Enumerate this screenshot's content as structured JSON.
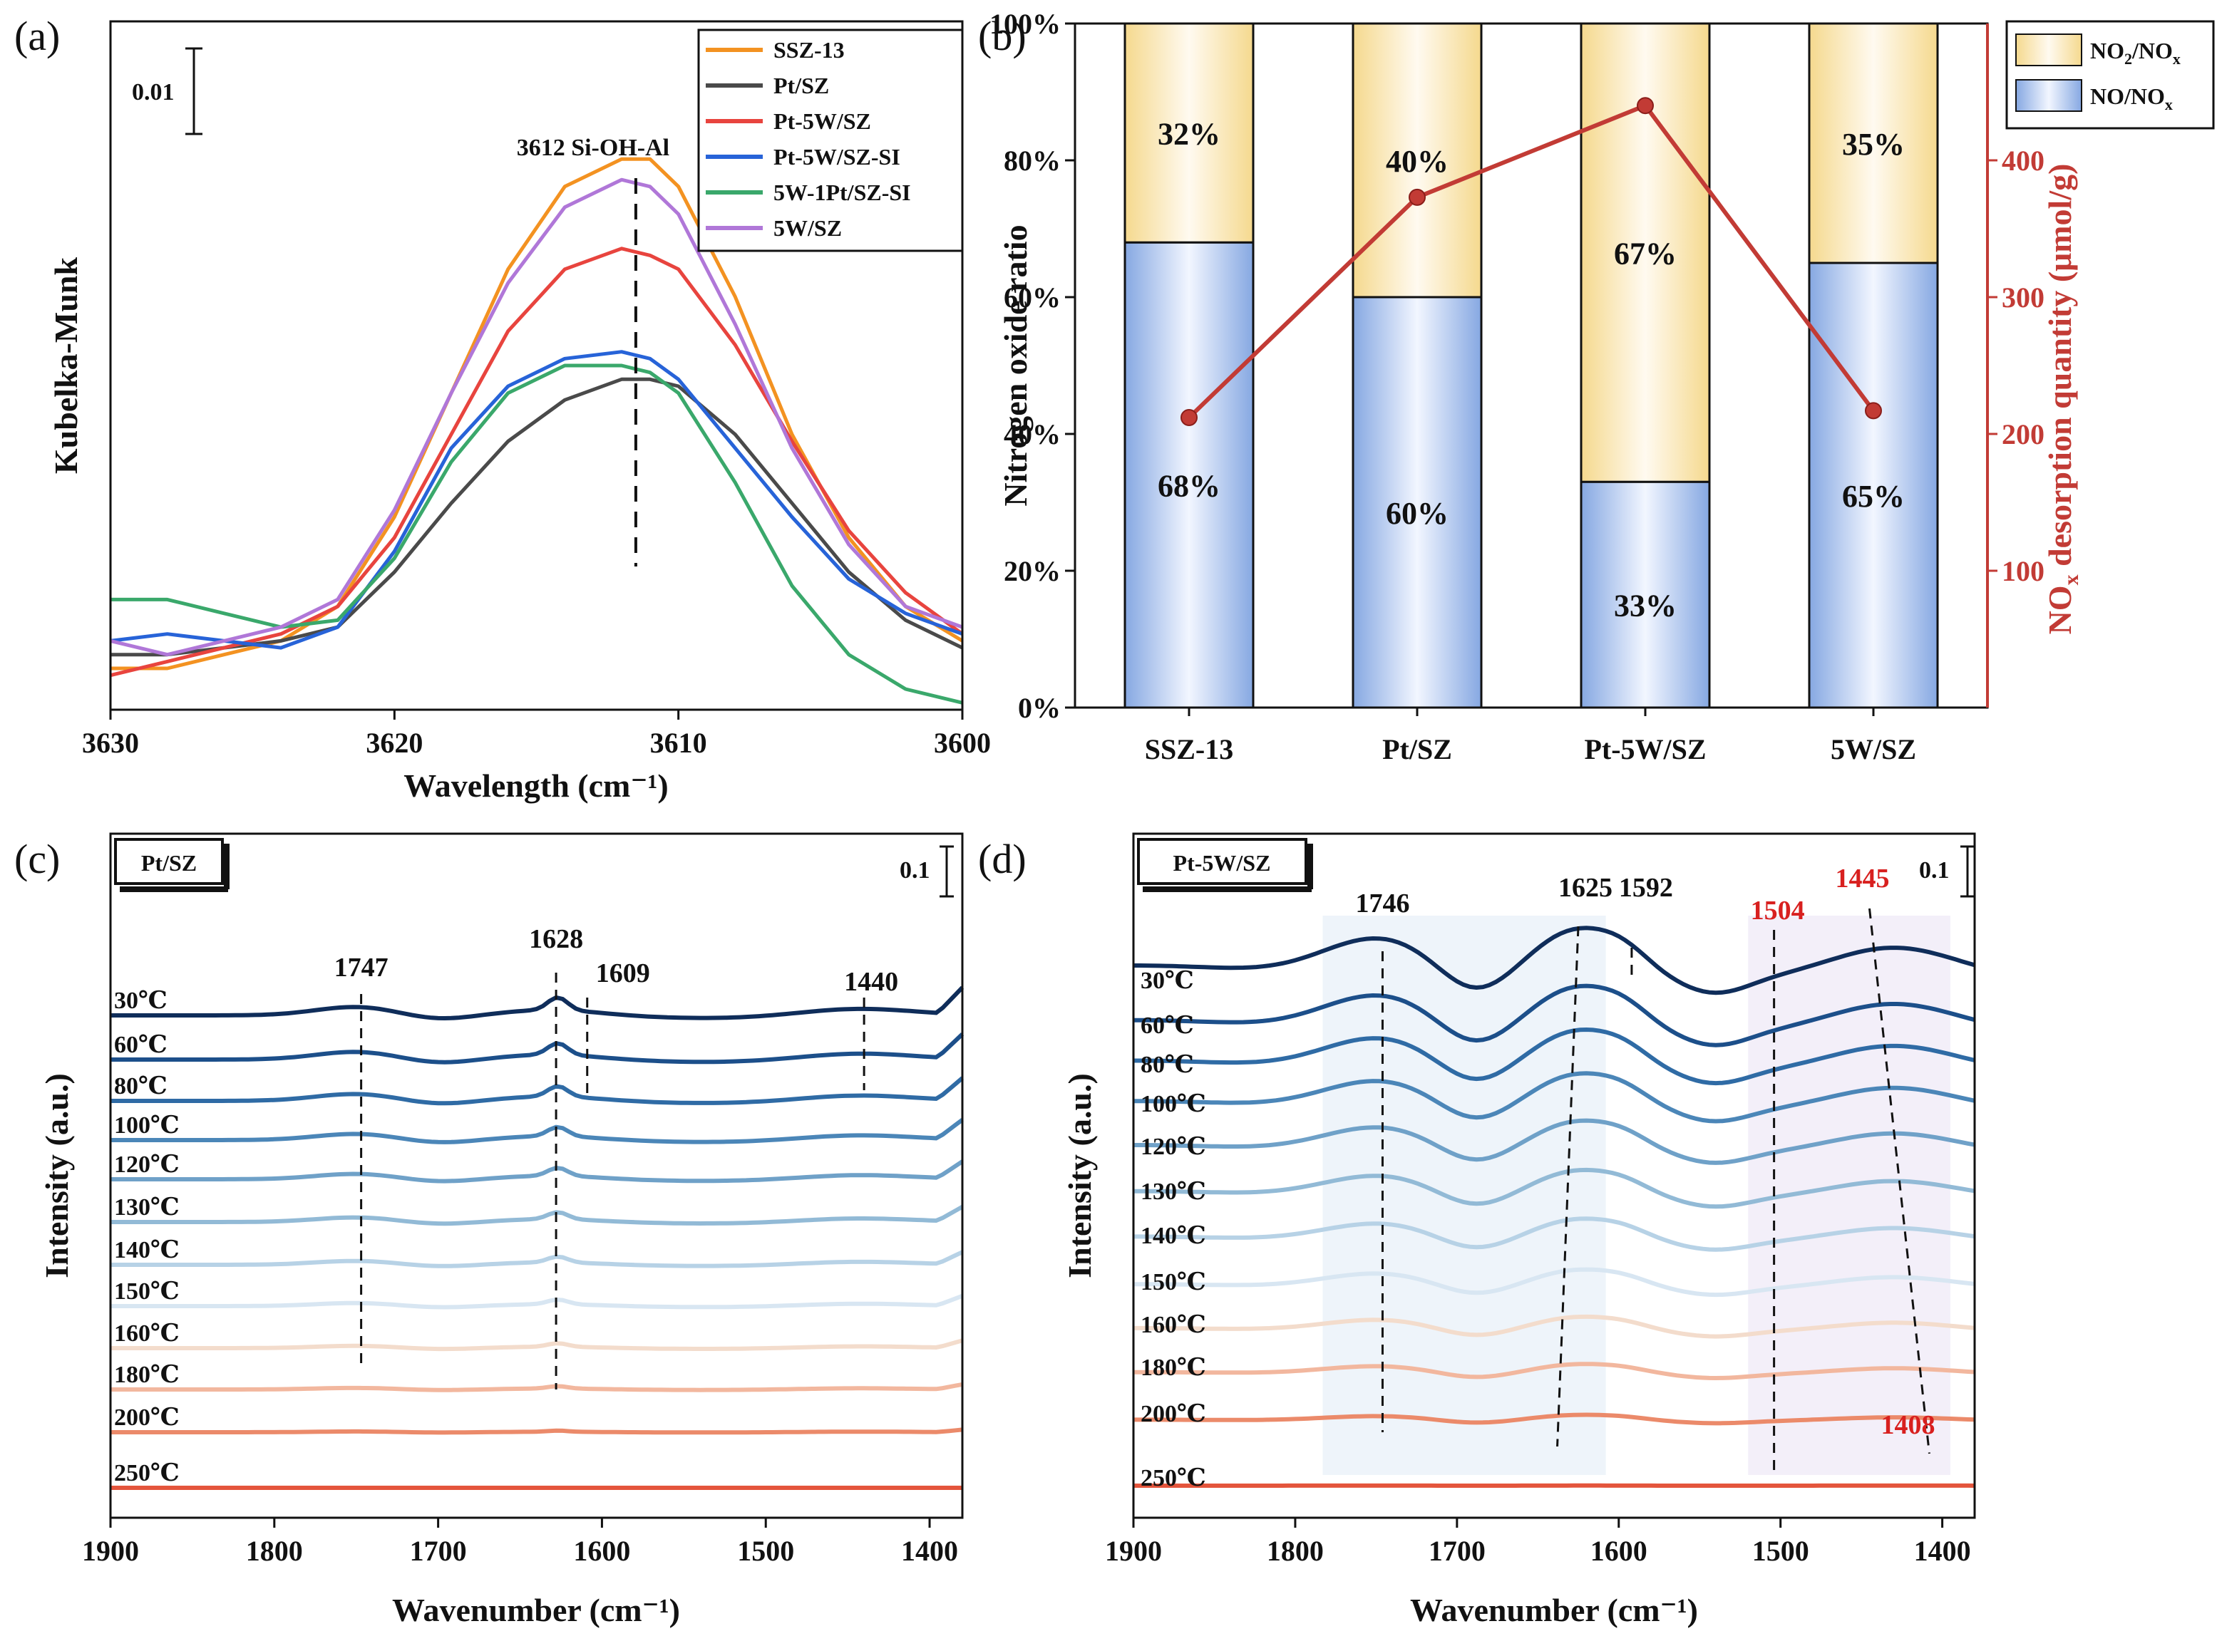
{
  "colors": {
    "ssz13": "#f39221",
    "ptsz": "#4a4a4a",
    "pt5wsz": "#e8443e",
    "pt5wszsi": "#2763d8",
    "w1ptszsi": "#3aa86b",
    "w5sz": "#b077d8",
    "no2_fill": "#f7e2a6",
    "no_fill": "#a9c2ea",
    "desorption": "#c23b35",
    "peak_red": "#d8201f",
    "axis": "#111111"
  },
  "chart_data": [
    {
      "id": "a",
      "panel_label": "(a)",
      "type": "line",
      "xlabel": "Wavelength (cm⁻¹)",
      "ylabel": "Kubelka-Munk",
      "xlim": [
        3630,
        3600
      ],
      "ylim": [
        0,
        1
      ],
      "xticks": [
        3630,
        3620,
        3610,
        3600
      ],
      "scale_bar_label": "0.01",
      "annotation": "3612 Si-OH-Al",
      "annotation_x": 3611.5,
      "series": [
        {
          "name": "SSZ-13",
          "color_key": "ssz13",
          "x": [
            3630,
            3628,
            3626,
            3624,
            3622,
            3620,
            3618,
            3616,
            3614,
            3612,
            3611,
            3610,
            3608,
            3606,
            3604,
            3602,
            3600
          ],
          "y": [
            0.06,
            0.06,
            0.08,
            0.1,
            0.15,
            0.28,
            0.46,
            0.64,
            0.76,
            0.8,
            0.8,
            0.76,
            0.6,
            0.4,
            0.25,
            0.15,
            0.1
          ]
        },
        {
          "name": "Pt/SZ",
          "color_key": "ptsz",
          "x": [
            3630,
            3628,
            3626,
            3624,
            3622,
            3620,
            3618,
            3616,
            3614,
            3612,
            3611,
            3610,
            3608,
            3606,
            3604,
            3602,
            3600
          ],
          "y": [
            0.08,
            0.08,
            0.09,
            0.1,
            0.12,
            0.2,
            0.3,
            0.39,
            0.45,
            0.48,
            0.48,
            0.47,
            0.4,
            0.3,
            0.2,
            0.13,
            0.09
          ]
        },
        {
          "name": "Pt-5W/SZ",
          "color_key": "pt5wsz",
          "x": [
            3630,
            3628,
            3626,
            3624,
            3622,
            3620,
            3618,
            3616,
            3614,
            3612,
            3611,
            3610,
            3608,
            3606,
            3604,
            3602,
            3600
          ],
          "y": [
            0.05,
            0.07,
            0.09,
            0.11,
            0.15,
            0.25,
            0.4,
            0.55,
            0.64,
            0.67,
            0.66,
            0.64,
            0.53,
            0.39,
            0.26,
            0.17,
            0.11
          ]
        },
        {
          "name": "Pt-5W/SZ-SI",
          "color_key": "pt5wszsi",
          "x": [
            3630,
            3628,
            3626,
            3624,
            3622,
            3620,
            3618,
            3616,
            3614,
            3612,
            3611,
            3610,
            3608,
            3606,
            3604,
            3602,
            3600
          ],
          "y": [
            0.1,
            0.11,
            0.1,
            0.09,
            0.12,
            0.23,
            0.38,
            0.47,
            0.51,
            0.52,
            0.51,
            0.48,
            0.38,
            0.28,
            0.19,
            0.14,
            0.11
          ]
        },
        {
          "name": "5W-1Pt/SZ-SI",
          "color_key": "w1ptszsi",
          "x": [
            3630,
            3628,
            3626,
            3624,
            3622,
            3620,
            3618,
            3616,
            3614,
            3612,
            3611,
            3610,
            3608,
            3606,
            3604,
            3602,
            3600
          ],
          "y": [
            0.16,
            0.16,
            0.14,
            0.12,
            0.13,
            0.22,
            0.36,
            0.46,
            0.5,
            0.5,
            0.49,
            0.46,
            0.33,
            0.18,
            0.08,
            0.03,
            0.01
          ]
        },
        {
          "name": "5W/SZ",
          "color_key": "w5sz",
          "x": [
            3630,
            3628,
            3626,
            3624,
            3622,
            3620,
            3618,
            3616,
            3614,
            3612,
            3611,
            3610,
            3608,
            3606,
            3604,
            3602,
            3600
          ],
          "y": [
            0.1,
            0.08,
            0.1,
            0.12,
            0.16,
            0.29,
            0.46,
            0.62,
            0.73,
            0.77,
            0.76,
            0.72,
            0.56,
            0.38,
            0.24,
            0.15,
            0.12
          ]
        }
      ]
    },
    {
      "id": "b",
      "panel_label": "(b)",
      "type": "bar",
      "stacked": true,
      "categories": [
        "SSZ-13",
        "Pt/SZ",
        "Pt-5W/SZ",
        "5W/SZ"
      ],
      "series": [
        {
          "name": "NO/NOₓ",
          "legend_main": "NO/NO",
          "legend_sub": "x",
          "color_key": "no_fill",
          "values": [
            68,
            60,
            33,
            65
          ],
          "labels": [
            "68%",
            "60%",
            "33%",
            "65%"
          ]
        },
        {
          "name": "NO₂/NOₓ",
          "legend_main1": "NO",
          "legend_sub1": "2",
          "legend_main2": "/NO",
          "legend_sub2": "x",
          "color_key": "no2_fill",
          "values": [
            32,
            40,
            67,
            35
          ],
          "labels": [
            "32%",
            "40%",
            "67%",
            "35%"
          ]
        }
      ],
      "ylabel": "Nitrogen oxide ratio",
      "ylim": [
        0,
        100
      ],
      "yticks": [
        "0%",
        "20%",
        "40%",
        "60%",
        "80%",
        "100%"
      ],
      "ytick_values": [
        0,
        20,
        40,
        60,
        80,
        100
      ],
      "secondary": {
        "type": "line",
        "ylabel_main": "NO",
        "ylabel_sub": "x",
        "ylabel_rest": " desorption quantity (μmol/g)",
        "ylim": [
          0,
          500
        ],
        "yticks": [
          100,
          200,
          300,
          400
        ],
        "values": [
          212,
          373,
          440,
          217
        ]
      },
      "legend_position": "top-right"
    },
    {
      "id": "c",
      "panel_label": "(c)",
      "type": "line",
      "title_box": "Pt/SZ",
      "xlabel": "Wavenumber (cm⁻¹)",
      "ylabel": "Intensity (a.u.)",
      "xlim": [
        1900,
        1380
      ],
      "xticks": [
        1900,
        1800,
        1700,
        1600,
        1500,
        1400
      ],
      "scale_bar_label": "0.1",
      "temperatures": [
        "30℃",
        "60℃",
        "80℃",
        "100℃",
        "120℃",
        "130℃",
        "140℃",
        "150℃",
        "160℃",
        "180℃",
        "200℃",
        "250℃"
      ],
      "peaks": [
        {
          "label": "1747",
          "x": 1747
        },
        {
          "label": "1628",
          "x": 1628
        },
        {
          "label": "1609",
          "x": 1609
        },
        {
          "label": "1440",
          "x": 1440
        }
      ]
    },
    {
      "id": "d",
      "panel_label": "(d)",
      "type": "line",
      "title_box": "Pt-5W/SZ",
      "xlabel": "Wavenumber (cm⁻¹)",
      "ylabel": "Intensity (a.u.)",
      "xlim": [
        1900,
        1380
      ],
      "xticks": [
        1900,
        1800,
        1700,
        1600,
        1500,
        1400
      ],
      "scale_bar_label": "0.1",
      "temperatures": [
        "30℃",
        "60℃",
        "80℃",
        "100℃",
        "120℃",
        "130℃",
        "140℃",
        "150℃",
        "160℃",
        "180℃",
        "200℃",
        "250℃"
      ],
      "peaks": [
        {
          "label": "1746",
          "x": 1746,
          "red": false
        },
        {
          "label": "1625",
          "x": 1625,
          "red": false
        },
        {
          "label": "1592",
          "x": 1592,
          "red": false
        },
        {
          "label": "1504",
          "x": 1504,
          "red": true
        },
        {
          "label": "1445",
          "x": 1445,
          "red": true
        },
        {
          "label": "1408",
          "x": 1408,
          "red": true
        }
      ]
    }
  ]
}
